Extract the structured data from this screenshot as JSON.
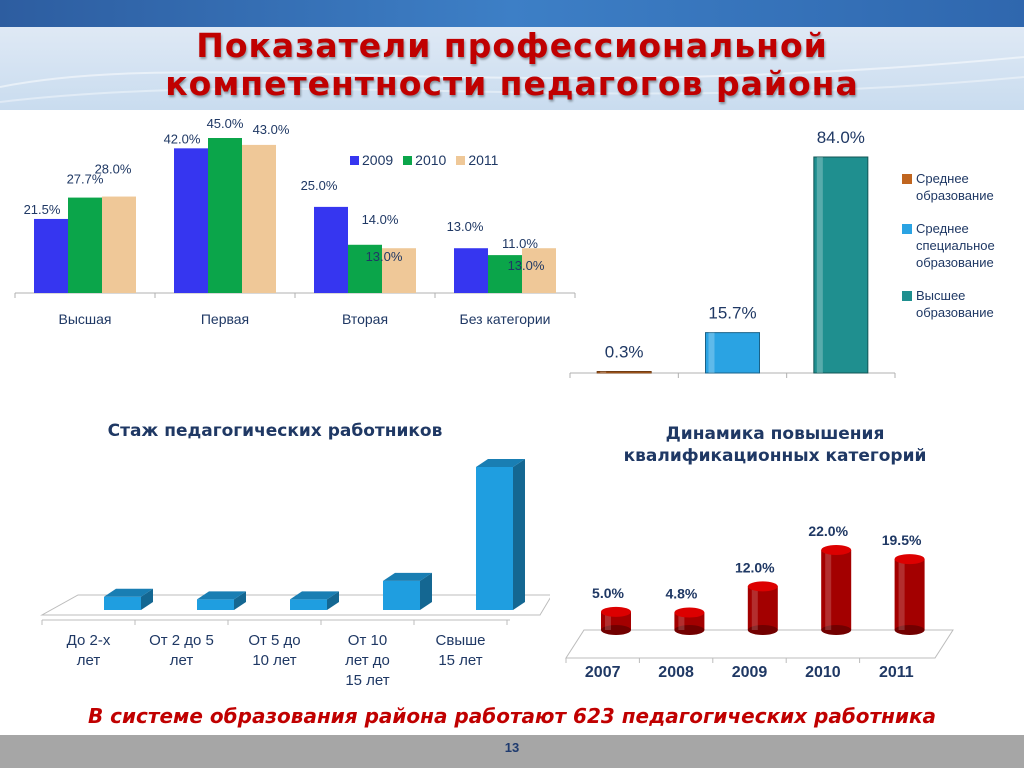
{
  "slide": {
    "title_line1": "Показатели профессиональной",
    "title_line2": "компетентности педагогов района",
    "footer": "В системе образования района работают 623 педагогических работника",
    "page_number": "13"
  },
  "chart_data": [
    {
      "type": "bar",
      "categories": [
        "Высшая",
        "Первая",
        "Вторая",
        "Без категории"
      ],
      "series": [
        {
          "name": "2009",
          "values": [
            21.5,
            42.0,
            25.0,
            13.0
          ],
          "color": "#3636f0"
        },
        {
          "name": "2010",
          "values": [
            27.7,
            45.0,
            14.0,
            11.0
          ],
          "color": "#0ba54a"
        },
        {
          "name": "2011",
          "values": [
            28.0,
            43.0,
            13.0,
            13.0
          ],
          "color": "#efc898"
        }
      ],
      "labels": [
        [
          "21.5%",
          "42.0%",
          "25.0%",
          "13.0%"
        ],
        [
          "27.7%",
          "45.0%",
          "14.0%",
          "11.0%"
        ],
        [
          "28.0%",
          "43.0%",
          "13.0%",
          "13.0%"
        ]
      ],
      "ylim": [
        0,
        45
      ],
      "legend_position": "top-right"
    },
    {
      "type": "bar",
      "categories": [
        "Среднее образование",
        "Среднее специальное образование",
        "Высшее образование"
      ],
      "values": [
        0.3,
        15.7,
        84.0
      ],
      "labels": [
        "0.3%",
        "15.7%",
        "84.0%"
      ],
      "colors": [
        "#c0651f",
        "#2aa3e3",
        "#1f8f8f"
      ],
      "ylim": [
        0,
        84
      ],
      "legend_position": "right"
    },
    {
      "type": "bar",
      "title": "Стаж педагогических работников",
      "categories": [
        "До 2-х лет",
        "От 2 до 5 лет",
        "От 5 до 10 лет",
        "От 10 лет до 15 лет",
        "Свыше 15 лет"
      ],
      "values": [
        5,
        4,
        4,
        11,
        54
      ],
      "color": "#1f9ee0"
    },
    {
      "type": "bar",
      "title": "Динамика повышения квалификационных категорий",
      "categories": [
        "2007",
        "2008",
        "2009",
        "2010",
        "2011"
      ],
      "values": [
        5.0,
        4.8,
        12.0,
        22.0,
        19.5
      ],
      "labels": [
        "5.0%",
        "4.8%",
        "12.0%",
        "22.0%",
        "19.5%"
      ],
      "color": "#a30000",
      "ylim": [
        0,
        22
      ]
    }
  ]
}
